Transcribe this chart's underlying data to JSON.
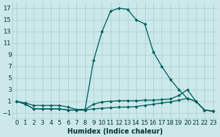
{
  "xlabel": "Humidex (Indice chaleur)",
  "ylabel": "",
  "bg_color": "#cce8ea",
  "grid_color": "#aacfd2",
  "line_color": "#006060",
  "xlim": [
    -0.5,
    23.5
  ],
  "ylim": [
    -2,
    18
  ],
  "yticks": [
    -1,
    1,
    3,
    5,
    7,
    9,
    11,
    13,
    15,
    17
  ],
  "xticks": [
    0,
    1,
    2,
    3,
    4,
    5,
    6,
    7,
    8,
    9,
    10,
    11,
    12,
    13,
    14,
    15,
    16,
    17,
    18,
    19,
    20,
    21,
    22,
    23
  ],
  "line1_x": [
    0,
    1,
    2,
    3,
    4,
    5,
    6,
    7,
    8,
    9,
    10,
    11,
    12,
    13,
    14,
    15,
    16,
    17,
    18,
    19,
    20,
    21,
    22,
    23
  ],
  "line1_y": [
    1.0,
    0.5,
    -0.3,
    -0.3,
    -0.3,
    -0.3,
    -0.5,
    -0.5,
    -0.5,
    -0.3,
    -0.2,
    -0.1,
    0.0,
    0.0,
    0.1,
    0.3,
    0.5,
    0.7,
    0.9,
    1.2,
    1.5,
    1.0,
    -0.5,
    -0.7
  ],
  "line2_x": [
    0,
    1,
    2,
    3,
    4,
    5,
    6,
    7,
    8,
    9,
    10,
    11,
    12,
    13,
    14,
    15,
    16,
    17,
    18,
    19,
    20,
    21,
    22,
    23
  ],
  "line2_y": [
    1.0,
    0.7,
    0.3,
    0.3,
    0.3,
    0.3,
    0.0,
    -0.4,
    -0.4,
    0.5,
    0.9,
    1.0,
    1.1,
    1.1,
    1.1,
    1.2,
    1.2,
    1.3,
    1.4,
    2.0,
    3.0,
    1.0,
    -0.5,
    -0.7
  ],
  "line3_x": [
    0,
    1,
    2,
    3,
    4,
    5,
    6,
    7,
    8,
    9,
    10,
    11,
    12,
    13,
    14,
    15,
    16,
    17,
    18,
    19,
    20,
    21,
    22,
    23
  ],
  "line3_y": [
    1.0,
    0.5,
    -0.3,
    -0.3,
    -0.3,
    -0.3,
    -0.5,
    -0.5,
    -0.5,
    8.0,
    13.0,
    16.5,
    17.0,
    16.8,
    15.0,
    14.3,
    9.5,
    7.0,
    4.8,
    3.0,
    1.5,
    1.0,
    -0.5,
    -0.7
  ],
  "fontsize_label": 7,
  "fontsize_tick": 6.5,
  "marker_size": 2.5,
  "line_width": 1.0
}
